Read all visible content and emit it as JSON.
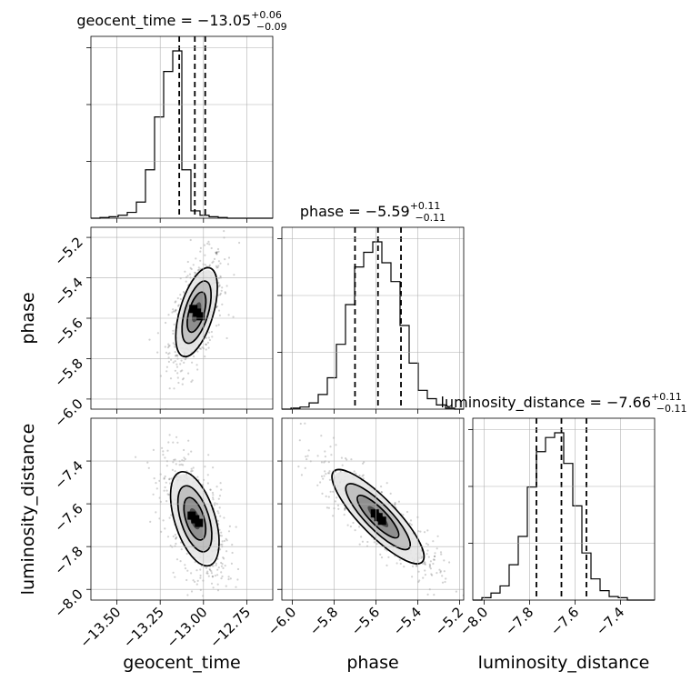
{
  "chart_data": {
    "type": "corner",
    "parameters": [
      "geocent_time",
      "phase",
      "luminosity_distance"
    ],
    "grid": true,
    "panels": [
      {
        "kind": "hist",
        "param": "geocent_time",
        "title": {
          "name": "geocent_time",
          "median": "-13.05",
          "plus": "+0.06",
          "minus": "-0.09"
        },
        "range": [
          -13.65,
          -12.6
        ],
        "counts": [
          0,
          0.5,
          1,
          2,
          4,
          11,
          33,
          69,
          100,
          114,
          33,
          5,
          2,
          1,
          0.5,
          0,
          0,
          0,
          0,
          0
        ],
        "quantiles": [
          -13.14,
          -13.05,
          -12.99
        ]
      },
      {
        "kind": "hist",
        "param": "phase",
        "title": {
          "name": "phase",
          "median": "-5.59",
          "plus": "+0.11",
          "minus": "-0.11"
        },
        "range": [
          -6.05,
          -5.18
        ],
        "counts": [
          0,
          0.5,
          1,
          3,
          7,
          15,
          31,
          50,
          68,
          75,
          80,
          70,
          61,
          40,
          22,
          9,
          5,
          2,
          0.5,
          0
        ],
        "quantiles": [
          -5.7,
          -5.59,
          -5.48
        ]
      },
      {
        "kind": "hist",
        "param": "luminosity_distance",
        "title": {
          "name": "luminosity_distance",
          "median": "-7.66",
          "plus": "+0.11",
          "minus": "-0.11"
        },
        "range": [
          -8.05,
          -7.25
        ],
        "counts": [
          0,
          1,
          3,
          6,
          15,
          27,
          48,
          63,
          69,
          71,
          58,
          40,
          20,
          9,
          4,
          1.5,
          1,
          0,
          0,
          0
        ],
        "quantiles": [
          -7.77,
          -7.66,
          -7.55
        ]
      },
      {
        "kind": "2d",
        "x": "geocent_time",
        "y": "phase",
        "xrange": [
          -13.65,
          -12.6
        ],
        "yrange": [
          -6.05,
          -5.15
        ],
        "center": [
          -13.04,
          -5.57
        ],
        "sigma": [
          0.06,
          0.11
        ],
        "corr": 0.55
      },
      {
        "kind": "2d",
        "x": "geocent_time",
        "y": "luminosity_distance",
        "xrange": [
          -13.65,
          -12.6
        ],
        "yrange": [
          -8.05,
          -7.2
        ],
        "center": [
          -13.05,
          -7.67
        ],
        "sigma": [
          0.07,
          0.11
        ],
        "corr": -0.5
      },
      {
        "kind": "2d",
        "x": "phase",
        "y": "luminosity_distance",
        "xrange": [
          -6.05,
          -5.18
        ],
        "yrange": [
          -8.05,
          -7.2
        ],
        "center": [
          -5.59,
          -7.66
        ],
        "sigma": [
          0.11,
          0.11
        ],
        "corr": -0.85
      }
    ],
    "axes": {
      "geocent_time": {
        "label": "geocent_time",
        "ticks": [
          -13.5,
          -13.25,
          -13.0,
          -12.75
        ],
        "tick_labels": [
          "−13.50",
          "−13.25",
          "−13.00",
          "−12.75"
        ]
      },
      "phase_x": {
        "label": "phase",
        "ticks": [
          -6.0,
          -5.8,
          -5.6,
          -5.4,
          -5.2
        ],
        "tick_labels": [
          "−6.0",
          "−5.8",
          "−5.6",
          "−5.4",
          "−5.2"
        ]
      },
      "phase_y": {
        "label": "phase",
        "ticks": [
          -6.0,
          -5.8,
          -5.6,
          -5.4,
          -5.2
        ],
        "tick_labels": [
          "−6.0",
          "−5.8",
          "−5.6",
          "−5.4",
          "−5.2"
        ]
      },
      "luminosity_distance_x": {
        "label": "luminosity_distance",
        "ticks": [
          -8.0,
          -7.8,
          -7.6,
          -7.4
        ],
        "tick_labels": [
          "−8.0",
          "−7.8",
          "−7.6",
          "−7.4"
        ]
      },
      "luminosity_distance_y": {
        "label": "luminosity_distance",
        "ticks": [
          -8.0,
          -7.8,
          -7.6,
          -7.4
        ],
        "tick_labels": [
          "−8.0",
          "−7.8",
          "−7.6",
          "−7.4"
        ]
      }
    },
    "colors": {
      "line": "#000000",
      "grid": "#b0b0b0",
      "scatter": "#000000"
    }
  }
}
